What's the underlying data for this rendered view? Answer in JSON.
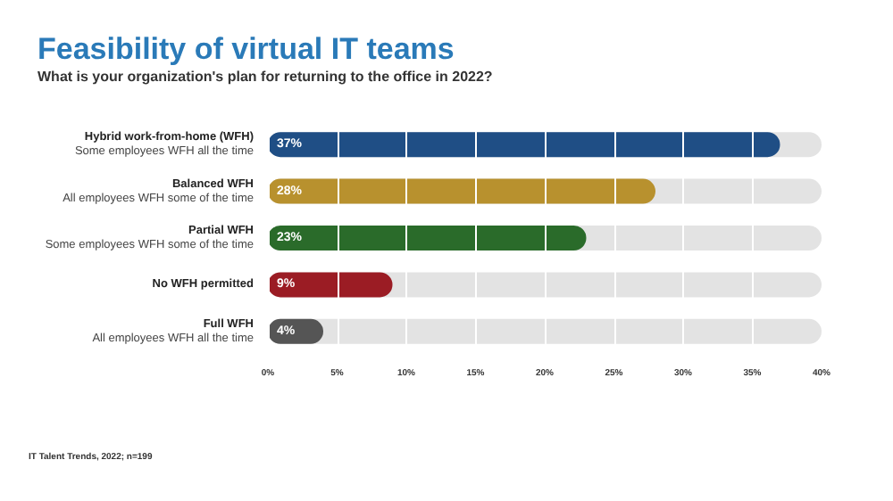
{
  "chart_data": {
    "type": "bar",
    "orientation": "horizontal",
    "title": "Feasibility of virtual IT teams",
    "subtitle": "What is your organization's plan for returning to the office in 2022?",
    "categories": [
      "Hybrid work-from-home (WFH)\nSome employees WFH all the time",
      "Balanced WFH\nAll employees WFH some of the time",
      "Partial WFH\nSome employees WFH some of the time",
      "No WFH permitted",
      "Full WFH\nAll employees WFH all the time"
    ],
    "values": [
      37,
      28,
      23,
      9,
      4
    ],
    "colors": [
      "#1f4e85",
      "#b8912e",
      "#2a6b2a",
      "#9b1c24",
      "#555555"
    ],
    "value_labels": [
      "37%",
      "28%",
      "23%",
      "9%",
      "4%"
    ],
    "xlim": [
      0,
      40
    ],
    "xticks": [
      {
        "value": 0,
        "label": "0%"
      },
      {
        "value": 5,
        "label": "5%"
      },
      {
        "value": 10,
        "label": "10%"
      },
      {
        "value": 15,
        "label": "15%"
      },
      {
        "value": 20,
        "label": "20%"
      },
      {
        "value": 25,
        "label": "25%"
      },
      {
        "value": 30,
        "label": "30%"
      },
      {
        "value": 35,
        "label": "35%"
      },
      {
        "value": 40,
        "label": "40%"
      }
    ],
    "grid": "x",
    "annotations": [
      "IT Talent Trends, 2022; n=199"
    ]
  }
}
